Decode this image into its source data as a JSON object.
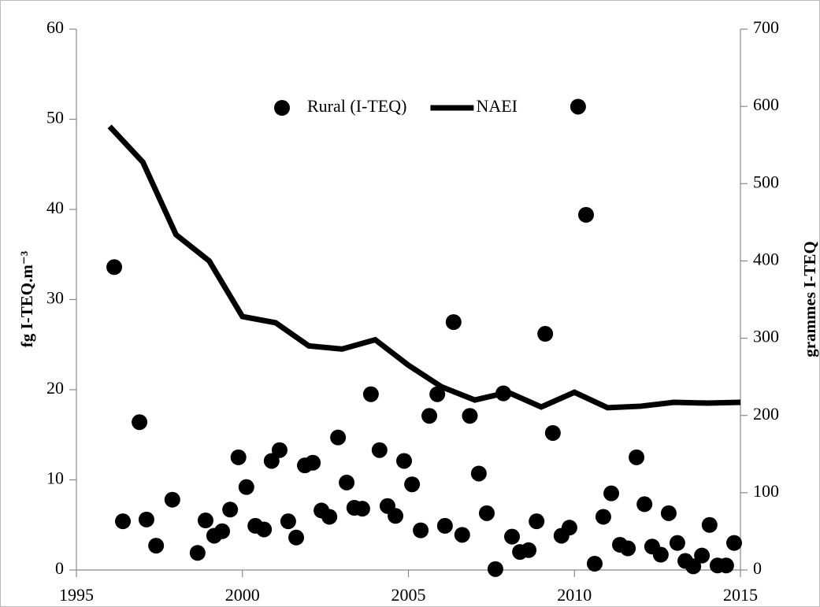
{
  "chart_data": {
    "type": "scatter",
    "y_label": "fg I-TEQ.m⁻³",
    "y2_label": "grammes I-TEQ",
    "xlim": [
      1995,
      2015
    ],
    "xticks": [
      1995,
      2000,
      2005,
      2010,
      2015
    ],
    "ylim": [
      0,
      60
    ],
    "yticks": [
      0,
      10,
      20,
      30,
      40,
      50,
      60
    ],
    "y2lim": [
      0,
      700
    ],
    "y2ticks": [
      0,
      100,
      200,
      300,
      400,
      500,
      600,
      700
    ],
    "legend": "top",
    "series": [
      {
        "name": "Rural (I-TEQ)",
        "type": "scatter",
        "color": "#000000",
        "x": [
          1996.14,
          1996.4,
          1996.9,
          1997.11,
          1997.4,
          1997.89,
          1998.65,
          1998.89,
          1999.15,
          1999.39,
          1999.63,
          1999.88,
          2000.12,
          2000.39,
          2000.65,
          2000.88,
          2001.12,
          2001.38,
          2001.62,
          2001.88,
          2002.12,
          2002.38,
          2002.62,
          2002.88,
          2003.14,
          2003.37,
          2003.61,
          2003.87,
          2004.13,
          2004.37,
          2004.61,
          2004.87,
          2005.11,
          2005.37,
          2005.63,
          2005.87,
          2006.1,
          2006.36,
          2006.62,
          2006.85,
          2007.12,
          2007.36,
          2007.62,
          2007.86,
          2008.12,
          2008.36,
          2008.62,
          2008.86,
          2009.12,
          2009.35,
          2009.61,
          2009.85,
          2010.11,
          2010.35,
          2010.61,
          2010.87,
          2011.11,
          2011.37,
          2011.61,
          2011.87,
          2012.11,
          2012.34,
          2012.6,
          2012.84,
          2013.1,
          2013.34,
          2013.58,
          2013.84,
          2014.07,
          2014.31,
          2014.57,
          2014.81
        ],
        "values": [
          33.6,
          5.4,
          16.4,
          5.6,
          2.7,
          7.8,
          1.9,
          5.5,
          3.8,
          4.3,
          6.7,
          12.5,
          9.2,
          4.9,
          4.5,
          12.1,
          13.3,
          5.4,
          3.6,
          11.6,
          11.9,
          6.6,
          5.9,
          14.7,
          9.7,
          6.9,
          6.8,
          19.5,
          13.3,
          7.1,
          6.0,
          12.1,
          9.5,
          4.4,
          17.1,
          19.5,
          4.9,
          27.5,
          3.9,
          17.1,
          10.7,
          6.3,
          0.1,
          19.6,
          3.7,
          2.0,
          2.2,
          5.4,
          26.2,
          15.2,
          3.8,
          4.7,
          51.4,
          39.4,
          0.7,
          5.9,
          8.5,
          2.8,
          2.4,
          12.5,
          7.3,
          2.6,
          1.7,
          6.3,
          3.0,
          1.0,
          0.4,
          1.6,
          5.0,
          0.5,
          0.5,
          3.0
        ]
      },
      {
        "name": "NAEI",
        "type": "line",
        "color": "#000000",
        "axis": "y2",
        "x": [
          1996,
          1997,
          1998,
          1999,
          2000,
          2001,
          2002,
          2003,
          2004,
          2005,
          2006,
          2007,
          2008,
          2009,
          2010,
          2011,
          2012,
          2013,
          2014,
          2015
        ],
        "values": [
          574,
          528,
          434,
          400,
          328,
          320,
          290,
          286,
          298,
          265,
          237,
          220,
          230,
          211,
          230,
          210,
          212,
          217,
          216,
          217
        ]
      }
    ]
  }
}
